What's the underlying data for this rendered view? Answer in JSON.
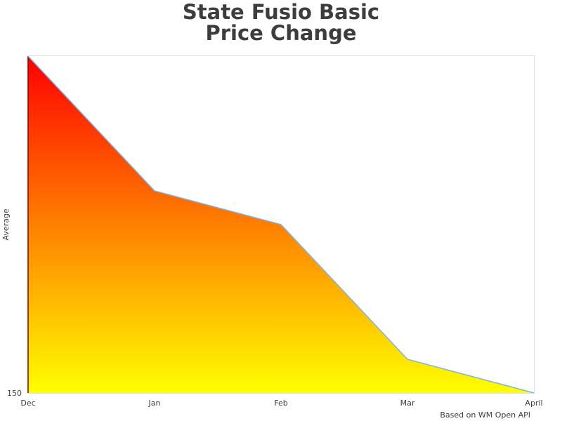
{
  "chart_data": {
    "type": "area",
    "title_lines": [
      "State Fusio Basic",
      "Price Change"
    ],
    "ylabel": "Average",
    "xlabel": "",
    "categories": [
      "Dec",
      "Jan",
      "Feb",
      "Mar",
      "April"
    ],
    "values": [
      250,
      210,
      200,
      160,
      150
    ],
    "ylim": [
      150,
      250
    ],
    "y_tick_labels": [
      "150"
    ],
    "credit": "Based on WM Open API",
    "grid": false,
    "legend": "none",
    "colors": {
      "gradient_top": "#ff0000",
      "gradient_bottom": "#ffff00",
      "line": "#7cb5ec",
      "left_edge": "#8b0000",
      "plot_border": "#dddddd",
      "text": "#3d3d3d"
    }
  }
}
